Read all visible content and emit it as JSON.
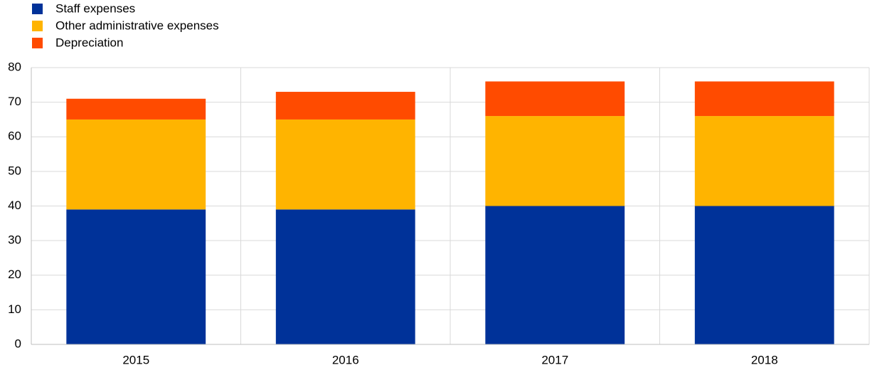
{
  "chart_data": {
    "type": "stacked_bar",
    "categories": [
      "2015",
      "2016",
      "2017",
      "2018"
    ],
    "series": [
      {
        "name": "Staff expenses",
        "color": "#003299",
        "values": [
          39,
          39,
          40,
          40
        ]
      },
      {
        "name": "Other administrative expenses",
        "color": "#ffb400",
        "values": [
          26,
          26,
          26,
          26
        ]
      },
      {
        "name": "Depreciation",
        "color": "#ff4b00",
        "values": [
          6,
          8,
          10,
          10
        ]
      }
    ],
    "ylim": [
      0,
      80
    ],
    "yticks": [
      0,
      10,
      20,
      30,
      40,
      50,
      60,
      70,
      80
    ],
    "grid": true
  }
}
